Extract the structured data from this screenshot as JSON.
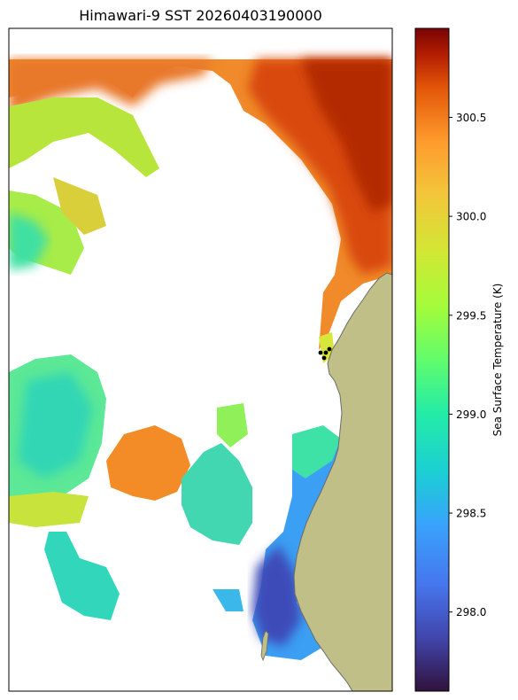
{
  "map": {
    "title": "Himawari-9 SST 20260403190000",
    "variable": "Sea Surface Temperature",
    "land_color": "#bfbf87",
    "coast_color": "#6b6b6b",
    "nodata_color": "#ffffff",
    "point_color": "#000000",
    "markers_visible": 4
  },
  "colorbar": {
    "label": "Sea Surface Temperature (K)",
    "colormap": "turbo",
    "vmin": 297.6,
    "vmax": 300.95,
    "ticks": [
      {
        "value": 298.0,
        "label": "298.0"
      },
      {
        "value": 298.5,
        "label": "298.5"
      },
      {
        "value": 299.0,
        "label": "299.0"
      },
      {
        "value": 299.5,
        "label": "299.5"
      },
      {
        "value": 300.0,
        "label": "300.0"
      },
      {
        "value": 300.5,
        "label": "300.5"
      }
    ]
  }
}
